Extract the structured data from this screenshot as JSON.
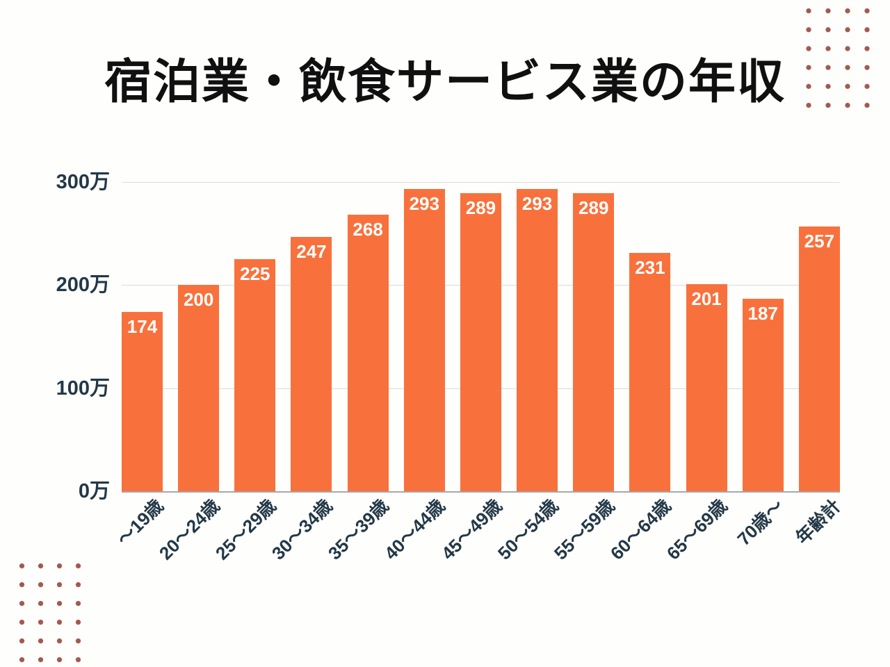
{
  "page": {
    "background_color": "#FEFEFC",
    "decor_dot_color": "#A3594F"
  },
  "chart_data": {
    "type": "bar",
    "title": "宿泊業・飲食サービス業の年収",
    "categories": [
      "〜19歳",
      "20〜24歳",
      "25〜29歳",
      "30〜34歳",
      "35〜39歳",
      "40〜44歳",
      "45〜49歳",
      "50〜54歳",
      "55〜59歳",
      "60〜64歳",
      "65〜69歳",
      "70歳〜",
      "年齢計"
    ],
    "values": [
      174,
      200,
      225,
      247,
      268,
      293,
      289,
      293,
      289,
      231,
      201,
      187,
      257
    ],
    "unit": "万",
    "xlabel": "",
    "ylabel": "",
    "ylim": [
      0,
      300
    ],
    "y_ticks": [
      0,
      100,
      200,
      300
    ],
    "y_tick_labels": [
      "0万",
      "100万",
      "200万",
      "300万"
    ],
    "grid": true,
    "legend": false,
    "bar_color": "#F8713C",
    "value_label_color": "#FFFFFF",
    "axis_text_color": "#233847",
    "gridline_color": "#DBDBDB",
    "baseline_color": "#A8A8A8"
  }
}
